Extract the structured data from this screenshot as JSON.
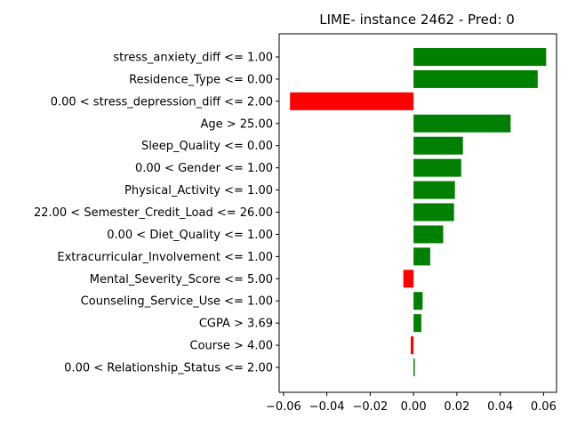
{
  "chart_data": {
    "type": "bar",
    "orientation": "horizontal",
    "title": "LIME- instance 2462 - Pred: 0",
    "xlabel": "",
    "ylabel": "",
    "xlim": [
      -0.062,
      0.066
    ],
    "xticks": [
      -0.06,
      -0.04,
      -0.02,
      0.0,
      0.02,
      0.04,
      0.06
    ],
    "xtick_labels": [
      "−0.06",
      "−0.04",
      "−0.02",
      "0.00",
      "0.02",
      "0.04",
      "0.06"
    ],
    "grid": false,
    "categories": [
      "stress_anxiety_diff <= 1.00",
      "Residence_Type <= 0.00",
      "0.00 < stress_depression_diff <= 2.00",
      "Age > 25.00",
      "Sleep_Quality <= 0.00",
      "0.00 < Gender <= 1.00",
      "Physical_Activity <= 1.00",
      "22.00 < Semester_Credit_Load <= 26.00",
      "0.00 < Diet_Quality <= 1.00",
      "Extracurricular_Involvement <= 1.00",
      "Mental_Severity_Score <= 5.00",
      "Counseling_Service_Use <= 1.00",
      "CGPA > 3.69",
      "Course > 4.00",
      "0.00 < Relationship_Status <= 2.00"
    ],
    "values": [
      0.0612,
      0.0573,
      -0.057,
      0.0448,
      0.0228,
      0.022,
      0.0191,
      0.0187,
      0.0137,
      0.0077,
      -0.0047,
      0.0042,
      0.0036,
      -0.0013,
      0.0006
    ],
    "colors": {
      "positive": "#008000",
      "negative": "#ff0000"
    }
  }
}
